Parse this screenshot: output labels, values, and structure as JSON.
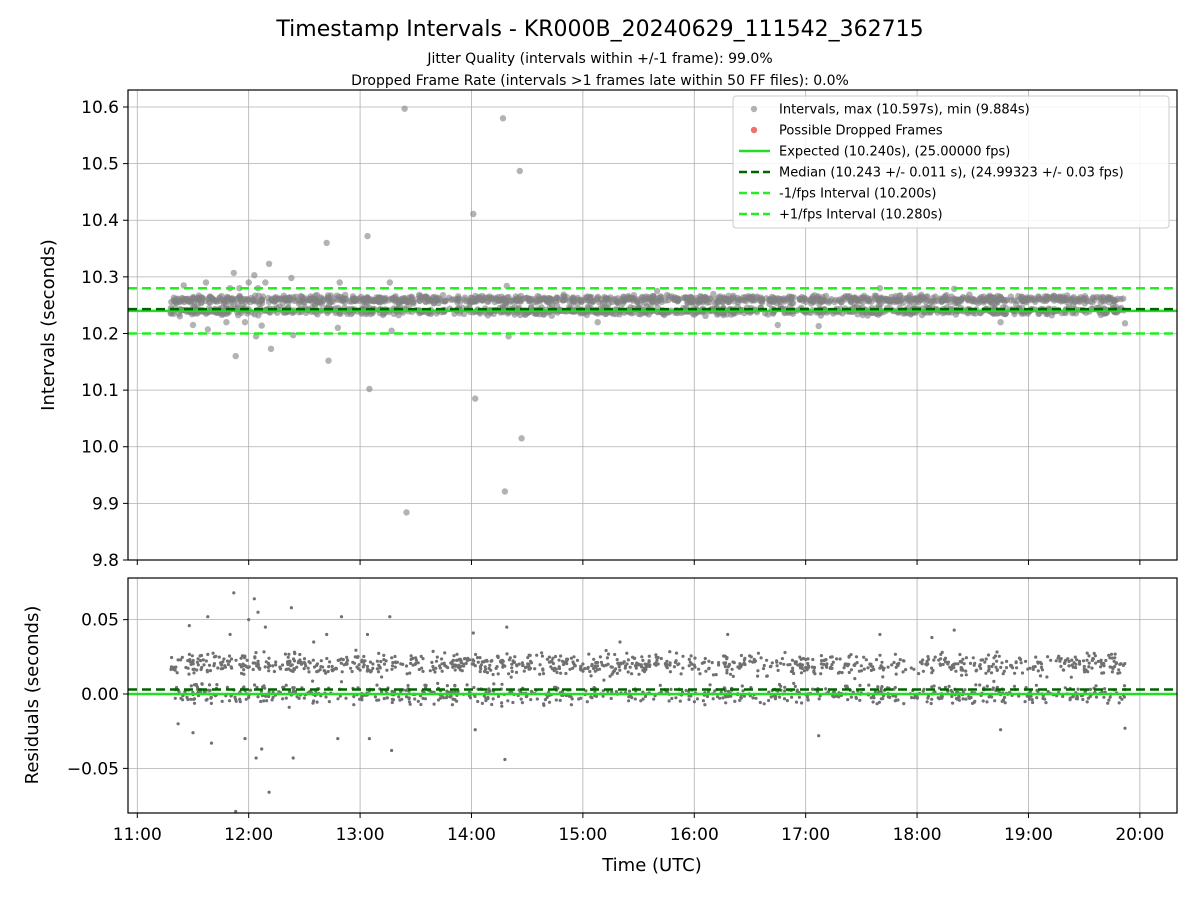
{
  "chart_data": [
    {
      "type": "scatter",
      "title": "Timestamp Intervals - KR000B_20240629_111542_362715",
      "subtitle_lines": [
        "Jitter Quality (intervals within +/-1 frame): 99.0%",
        "Dropped Frame Rate (intervals >1 frames late within 50 FF files): 0.0%"
      ],
      "xlabel": "",
      "ylabel": "Intervals (seconds)",
      "ylim": [
        9.8,
        10.63
      ],
      "xlim": [
        "10:55",
        "20:20"
      ],
      "grid": true,
      "legend_position": "top-right",
      "yticks": [
        "9.8",
        "9.9",
        "10.0",
        "10.1",
        "10.2",
        "10.3",
        "10.4",
        "10.5",
        "10.6"
      ],
      "series": [
        {
          "name": "Intervals, max (10.597s), min (9.884s)",
          "kind": "points",
          "color": "#808080",
          "cluster": {
            "x_range": [
              "11:18",
              "19:52"
            ],
            "upper_level": 10.26,
            "lower_level": 10.24,
            "spread": 0.02,
            "count": 2000
          },
          "outliers": [
            {
              "x": "11:25",
              "y": 10.285
            },
            {
              "x": "11:30",
              "y": 10.215
            },
            {
              "x": "11:37",
              "y": 10.29
            },
            {
              "x": "11:38",
              "y": 10.207
            },
            {
              "x": "11:48",
              "y": 10.22
            },
            {
              "x": "11:50",
              "y": 10.28
            },
            {
              "x": "11:52",
              "y": 10.307
            },
            {
              "x": "11:53",
              "y": 10.16
            },
            {
              "x": "11:55",
              "y": 10.28
            },
            {
              "x": "11:58",
              "y": 10.22
            },
            {
              "x": "12:00",
              "y": 10.29
            },
            {
              "x": "12:03",
              "y": 10.303
            },
            {
              "x": "12:04",
              "y": 10.195
            },
            {
              "x": "12:05",
              "y": 10.28
            },
            {
              "x": "12:07",
              "y": 10.214
            },
            {
              "x": "12:09",
              "y": 10.29
            },
            {
              "x": "12:11",
              "y": 10.323
            },
            {
              "x": "12:12",
              "y": 10.173
            },
            {
              "x": "12:23",
              "y": 10.298
            },
            {
              "x": "12:24",
              "y": 10.197
            },
            {
              "x": "12:42",
              "y": 10.36
            },
            {
              "x": "12:43",
              "y": 10.152
            },
            {
              "x": "12:48",
              "y": 10.21
            },
            {
              "x": "12:49",
              "y": 10.29
            },
            {
              "x": "13:04",
              "y": 10.372
            },
            {
              "x": "13:05",
              "y": 10.102
            },
            {
              "x": "13:16",
              "y": 10.29
            },
            {
              "x": "13:17",
              "y": 10.205
            },
            {
              "x": "13:24",
              "y": 10.597
            },
            {
              "x": "13:25",
              "y": 9.884
            },
            {
              "x": "14:01",
              "y": 10.411
            },
            {
              "x": "14:02",
              "y": 10.085
            },
            {
              "x": "14:17",
              "y": 10.58
            },
            {
              "x": "14:18",
              "y": 9.921
            },
            {
              "x": "14:19",
              "y": 10.284
            },
            {
              "x": "14:20",
              "y": 10.195
            },
            {
              "x": "14:26",
              "y": 10.487
            },
            {
              "x": "14:27",
              "y": 10.015
            },
            {
              "x": "15:08",
              "y": 10.22
            },
            {
              "x": "15:40",
              "y": 10.275
            },
            {
              "x": "16:45",
              "y": 10.215
            },
            {
              "x": "17:07",
              "y": 10.213
            },
            {
              "x": "17:40",
              "y": 10.28
            },
            {
              "x": "18:20",
              "y": 10.279
            },
            {
              "x": "18:45",
              "y": 10.22
            },
            {
              "x": "19:52",
              "y": 10.218
            }
          ]
        },
        {
          "name": "Possible Dropped Frames",
          "kind": "points",
          "color": "#f06060",
          "points": []
        },
        {
          "name": "Expected (10.240s), (25.00000 fps)",
          "kind": "hline",
          "y": 10.24,
          "style": "solid",
          "color": "#22dd22"
        },
        {
          "name": "Median (10.243 +/- 0.011 s), (24.99323 +/- 0.03 fps)",
          "kind": "hline",
          "y": 10.243,
          "style": "dashed",
          "color": "#006400"
        },
        {
          "name": "-1/fps Interval (10.200s)",
          "kind": "hline",
          "y": 10.2,
          "style": "dashed",
          "color": "#22ee22"
        },
        {
          "name": "+1/fps Interval (10.280s)",
          "kind": "hline",
          "y": 10.28,
          "style": "dashed",
          "color": "#22ee22"
        }
      ]
    },
    {
      "type": "scatter",
      "title": "",
      "xlabel": "Time (UTC)",
      "ylabel": "Residuals (seconds)",
      "ylim": [
        -0.08,
        0.078
      ],
      "xlim": [
        "10:55",
        "20:20"
      ],
      "grid": true,
      "xticks": [
        "11:00",
        "12:00",
        "13:00",
        "14:00",
        "15:00",
        "16:00",
        "17:00",
        "18:00",
        "19:00",
        "20:00"
      ],
      "yticks": [
        "−0.05",
        "0.00",
        "0.05"
      ],
      "series": [
        {
          "name": "",
          "kind": "points",
          "color": "#707070",
          "cluster": {
            "x_range": [
              "11:18",
              "19:52"
            ],
            "upper_level": 0.02,
            "lower_level": 0.0,
            "spread": 0.02,
            "count": 1700
          },
          "outliers": [
            {
              "x": "11:22",
              "y": -0.02
            },
            {
              "x": "11:28",
              "y": 0.046
            },
            {
              "x": "11:30",
              "y": -0.026
            },
            {
              "x": "11:38",
              "y": 0.052
            },
            {
              "x": "11:40",
              "y": -0.033
            },
            {
              "x": "11:50",
              "y": 0.04
            },
            {
              "x": "11:52",
              "y": 0.068
            },
            {
              "x": "11:53",
              "y": -0.079
            },
            {
              "x": "11:58",
              "y": -0.03
            },
            {
              "x": "12:00",
              "y": 0.05
            },
            {
              "x": "12:03",
              "y": 0.064
            },
            {
              "x": "12:04",
              "y": -0.043
            },
            {
              "x": "12:05",
              "y": 0.055
            },
            {
              "x": "12:07",
              "y": -0.037
            },
            {
              "x": "12:09",
              "y": 0.045
            },
            {
              "x": "12:11",
              "y": -0.066
            },
            {
              "x": "12:23",
              "y": 0.058
            },
            {
              "x": "12:24",
              "y": -0.043
            },
            {
              "x": "12:35",
              "y": 0.035
            },
            {
              "x": "12:42",
              "y": 0.04
            },
            {
              "x": "12:48",
              "y": -0.03
            },
            {
              "x": "12:50",
              "y": 0.052
            },
            {
              "x": "13:04",
              "y": 0.04
            },
            {
              "x": "13:05",
              "y": -0.03
            },
            {
              "x": "13:16",
              "y": 0.052
            },
            {
              "x": "13:17",
              "y": -0.038
            },
            {
              "x": "14:01",
              "y": 0.041
            },
            {
              "x": "14:02",
              "y": -0.024
            },
            {
              "x": "14:18",
              "y": -0.044
            },
            {
              "x": "14:19",
              "y": 0.045
            },
            {
              "x": "15:20",
              "y": 0.035
            },
            {
              "x": "16:18",
              "y": 0.04
            },
            {
              "x": "17:07",
              "y": -0.028
            },
            {
              "x": "17:40",
              "y": 0.04
            },
            {
              "x": "18:08",
              "y": 0.038
            },
            {
              "x": "18:20",
              "y": 0.043
            },
            {
              "x": "18:45",
              "y": -0.024
            },
            {
              "x": "19:52",
              "y": -0.023
            }
          ]
        },
        {
          "name": "",
          "kind": "hline",
          "y": 0.0,
          "style": "solid",
          "color": "#22dd22"
        },
        {
          "name": "",
          "kind": "hline",
          "y": 0.003,
          "style": "dashed",
          "color": "#006400"
        }
      ]
    }
  ]
}
